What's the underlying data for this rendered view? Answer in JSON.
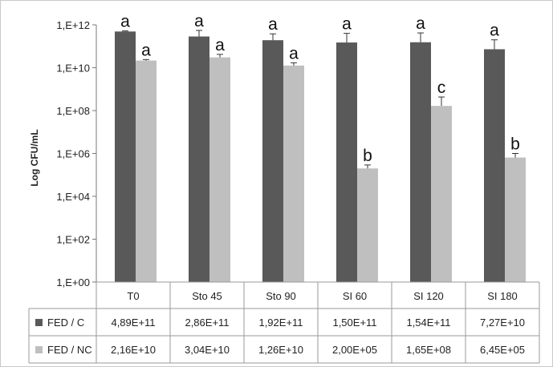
{
  "chart_data": {
    "type": "bar",
    "ylabel": "Log CFU/mL",
    "yscale": "log",
    "ylim": [
      1,
      1000000000000
    ],
    "ytick_labels": [
      "1,E+00",
      "1,E+02",
      "1,E+04",
      "1,E+06",
      "1,E+08",
      "1,E+10",
      "1,E+12"
    ],
    "categories": [
      "T0",
      "Sto 45",
      "Sto 90",
      "SI 60",
      "SI 120",
      "SI 180"
    ],
    "series": [
      {
        "name": "FED / C",
        "color": "#595959",
        "values": [
          489000000000,
          286000000000,
          192000000000,
          150000000000,
          154000000000,
          72700000000
        ],
        "labels": [
          "4,89E+11",
          "2,86E+11",
          "1,92E+11",
          "1,50E+11",
          "1,54E+11",
          "7,27E+10"
        ],
        "error_upper": [
          520000000000,
          550000000000,
          380000000000,
          400000000000,
          420000000000,
          200000000000
        ],
        "significance": [
          "a",
          "a",
          "a",
          "a",
          "a",
          "a"
        ]
      },
      {
        "name": "FED / NC",
        "color": "#bfbfbf",
        "values": [
          21600000000,
          30400000000,
          12600000000,
          200000,
          165000000,
          645000
        ],
        "labels": [
          "2,16E+10",
          "3,04E+10",
          "1,26E+10",
          "2,00E+05",
          "1,65E+08",
          "6,45E+05"
        ],
        "error_upper": [
          24000000000,
          42000000000,
          17000000000,
          290000,
          430000000,
          1000000
        ],
        "significance": [
          "a",
          "a",
          "a",
          "b",
          "c",
          "b"
        ]
      }
    ],
    "grid": false,
    "legend": "data-table"
  }
}
